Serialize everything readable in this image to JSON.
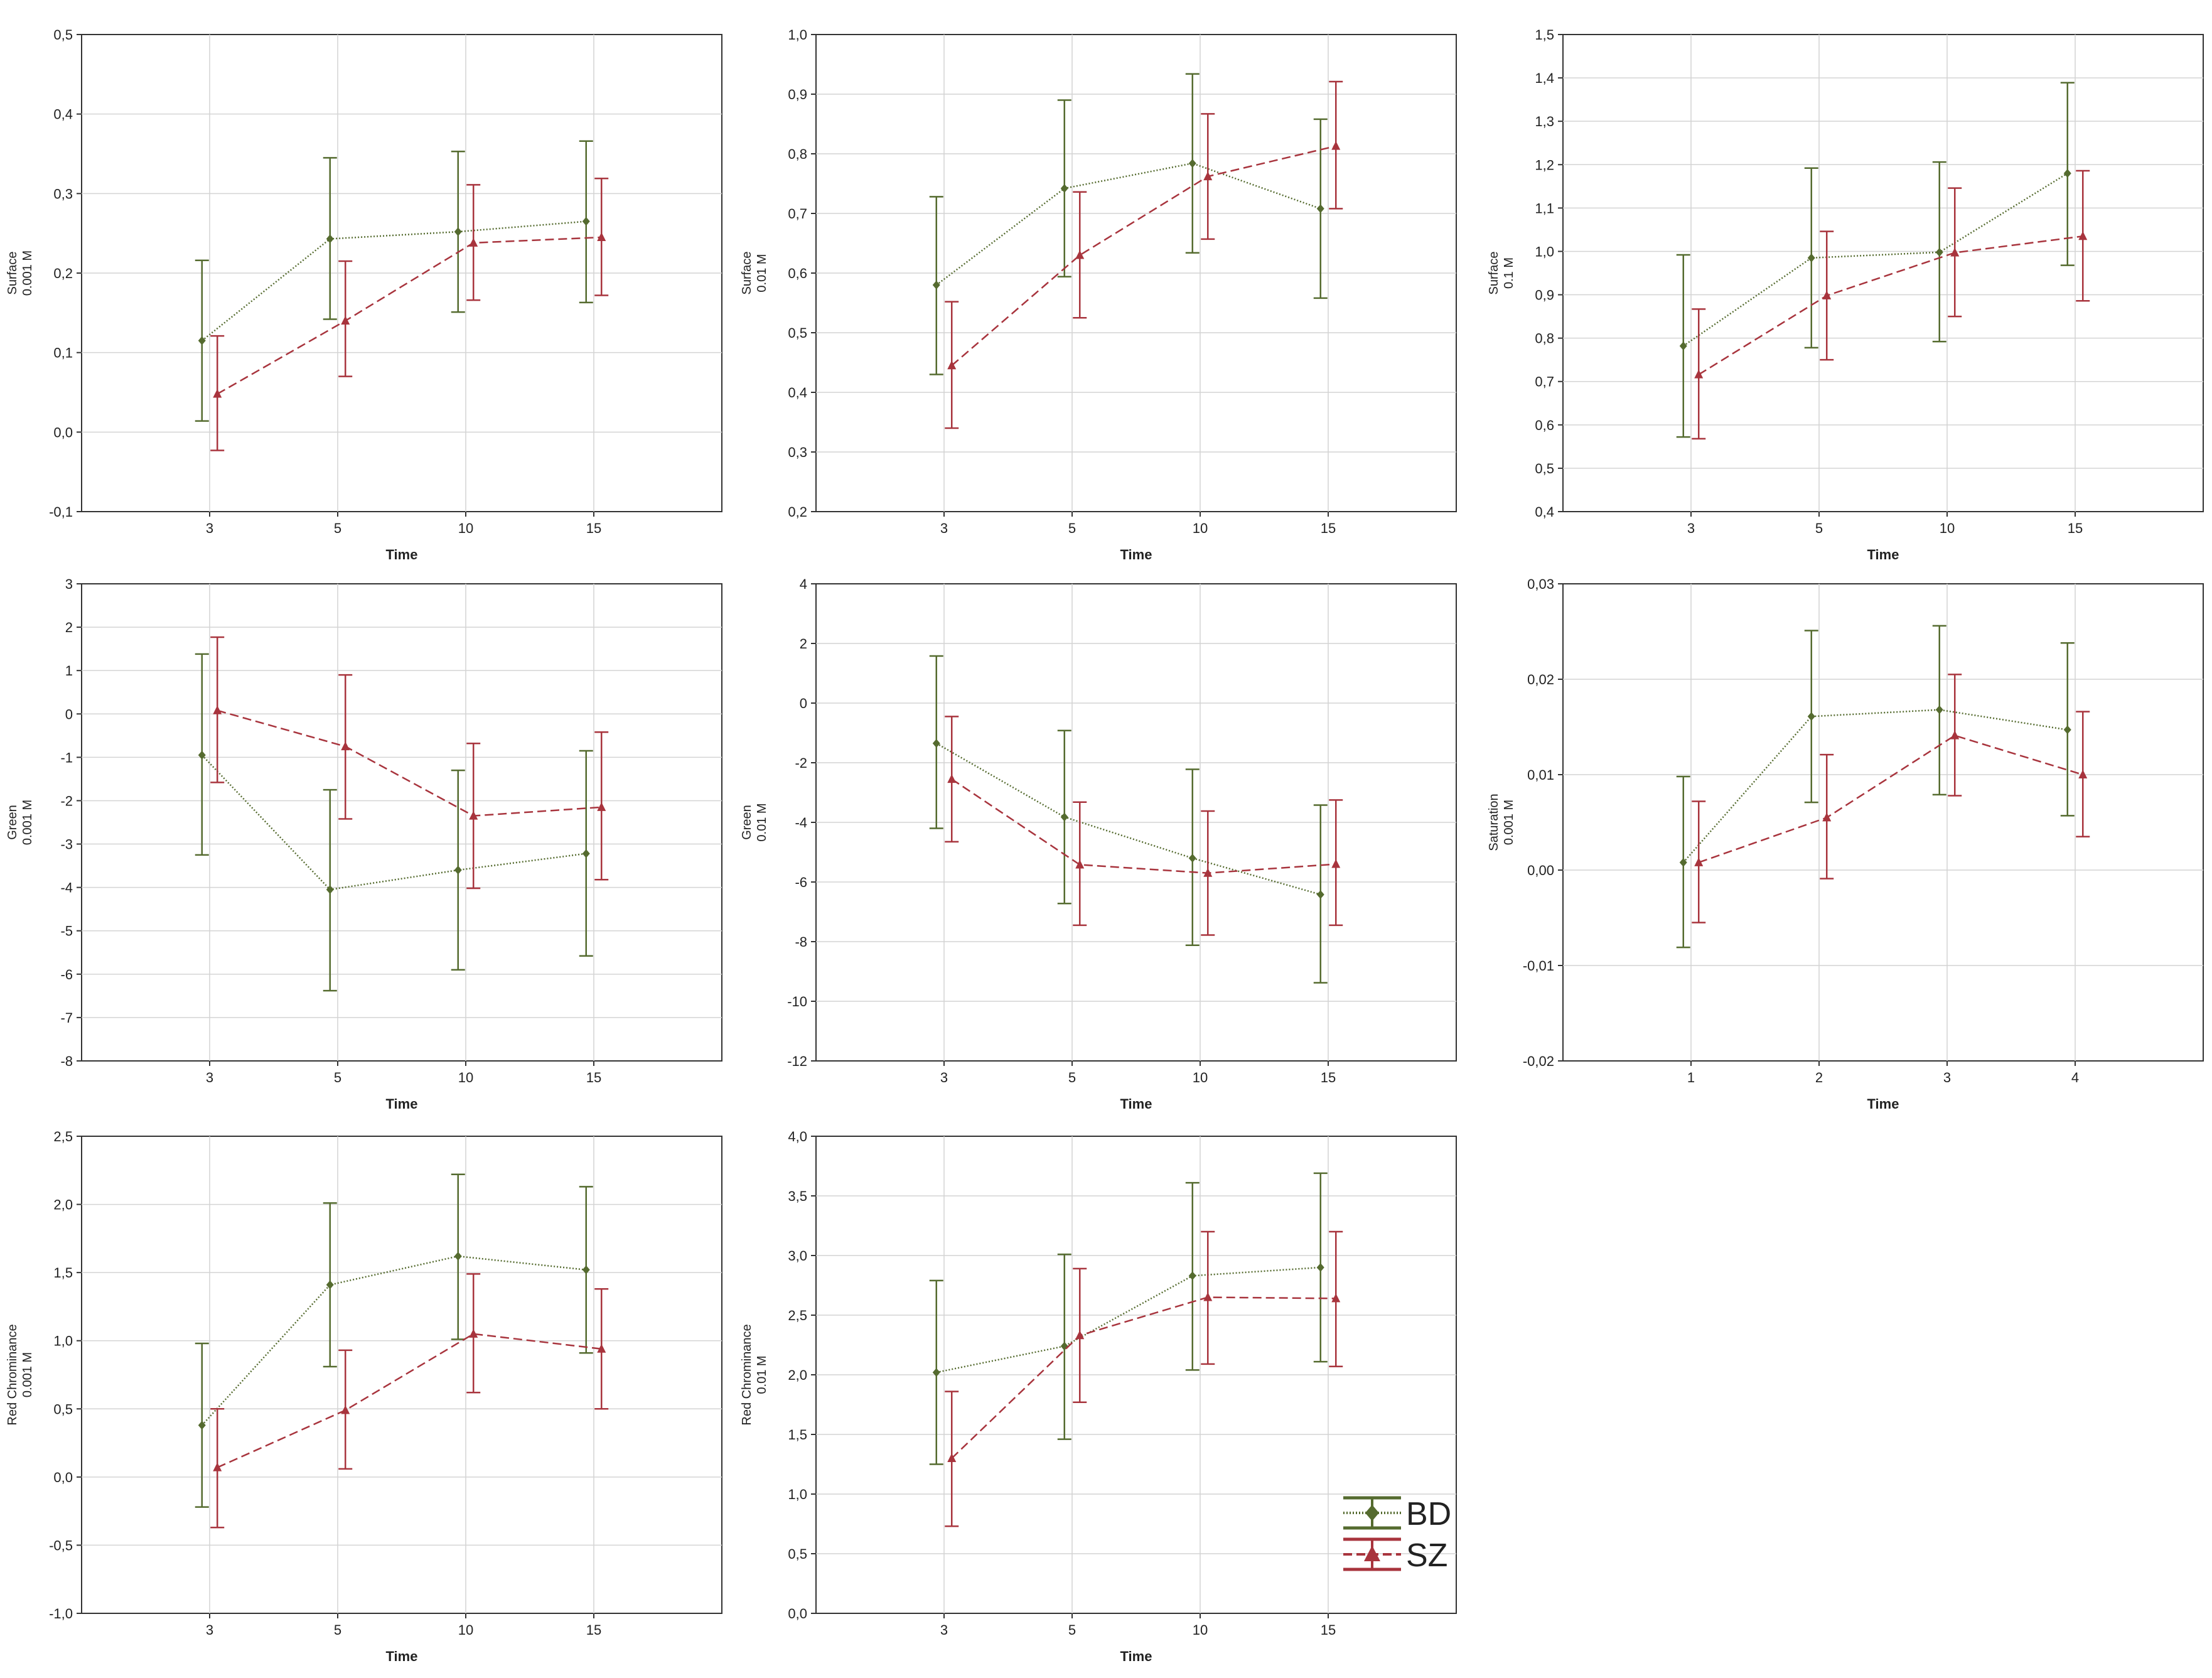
{
  "legend": {
    "entries": [
      {
        "label": "BD",
        "color": "#556b2f",
        "marker": "diamond",
        "dash": "2,3"
      },
      {
        "label": "SZ",
        "color": "#a8343d",
        "marker": "triangle",
        "dash": "14,7"
      }
    ]
  },
  "chart_data": [
    {
      "type": "line",
      "xlabel": "Time",
      "ylabel": [
        "Surface",
        "0.001 M"
      ],
      "categories": [
        "3",
        "5",
        "10",
        "15"
      ],
      "ylim": [
        -0.1,
        0.5
      ],
      "yticks": [
        "-0,1",
        "0,0",
        "0,1",
        "0,2",
        "0,3",
        "0,4",
        "0,5"
      ],
      "series": [
        {
          "name": "BD",
          "values": [
            0.115,
            0.243,
            0.252,
            0.265
          ],
          "lower": [
            0.014,
            0.142,
            0.151,
            0.163
          ],
          "upper": [
            0.216,
            0.345,
            0.353,
            0.366
          ]
        },
        {
          "name": "SZ",
          "values": [
            0.048,
            0.14,
            0.238,
            0.245
          ],
          "lower": [
            -0.023,
            0.07,
            0.166,
            0.172
          ],
          "upper": [
            0.121,
            0.215,
            0.311,
            0.319
          ]
        }
      ]
    },
    {
      "type": "line",
      "xlabel": "Time",
      "ylabel": [
        "Surface",
        "0.01 M"
      ],
      "categories": [
        "3",
        "5",
        "10",
        "15"
      ],
      "ylim": [
        0.2,
        1.0
      ],
      "yticks": [
        "0,2",
        "0,3",
        "0,4",
        "0,5",
        "0,6",
        "0,7",
        "0,8",
        "0,9",
        "1,0"
      ],
      "series": [
        {
          "name": "BD",
          "values": [
            0.58,
            0.742,
            0.784,
            0.708
          ],
          "lower": [
            0.43,
            0.594,
            0.634,
            0.558
          ],
          "upper": [
            0.728,
            0.89,
            0.934,
            0.858
          ]
        },
        {
          "name": "SZ",
          "values": [
            0.445,
            0.63,
            0.762,
            0.813
          ],
          "lower": [
            0.34,
            0.525,
            0.657,
            0.708
          ],
          "upper": [
            0.552,
            0.736,
            0.867,
            0.921
          ]
        }
      ]
    },
    {
      "type": "line",
      "xlabel": "Time",
      "ylabel": [
        "Surface",
        "0.1 M"
      ],
      "categories": [
        "3",
        "5",
        "10",
        "15"
      ],
      "ylim": [
        0.4,
        1.5
      ],
      "yticks": [
        "0,4",
        "0,5",
        "0,6",
        "0,7",
        "0,8",
        "0,9",
        "1,0",
        "1,1",
        "1,2",
        "1,3",
        "1,4",
        "1,5"
      ],
      "series": [
        {
          "name": "BD",
          "values": [
            0.782,
            0.985,
            0.998,
            1.18
          ],
          "lower": [
            0.572,
            0.778,
            0.792,
            0.968
          ],
          "upper": [
            0.992,
            1.192,
            1.206,
            1.389
          ]
        },
        {
          "name": "SZ",
          "values": [
            0.716,
            0.898,
            0.997,
            1.035
          ],
          "lower": [
            0.568,
            0.75,
            0.85,
            0.886
          ],
          "upper": [
            0.867,
            1.046,
            1.146,
            1.186
          ]
        }
      ]
    },
    {
      "type": "line",
      "xlabel": "Time",
      "ylabel": [
        "Green",
        "0.001 M"
      ],
      "categories": [
        "3",
        "5",
        "10",
        "15"
      ],
      "ylim": [
        -8,
        3
      ],
      "yticks": [
        "-8",
        "-7",
        "-6",
        "-5",
        "-4",
        "-3",
        "-2",
        "-1",
        "0",
        "1",
        "2",
        "3"
      ],
      "series": [
        {
          "name": "BD",
          "values": [
            -0.95,
            -4.05,
            -3.6,
            -3.22
          ],
          "lower": [
            -3.25,
            -6.38,
            -5.9,
            -5.58
          ],
          "upper": [
            1.38,
            -1.75,
            -1.3,
            -0.85
          ]
        },
        {
          "name": "SZ",
          "values": [
            0.08,
            -0.75,
            -2.35,
            -2.15
          ],
          "lower": [
            -1.58,
            -2.42,
            -4.02,
            -3.82
          ],
          "upper": [
            1.77,
            0.9,
            -0.68,
            -0.42
          ]
        }
      ]
    },
    {
      "type": "line",
      "xlabel": "Time",
      "ylabel": [
        "Green",
        "0.01 M"
      ],
      "categories": [
        "3",
        "5",
        "10",
        "15"
      ],
      "ylim": [
        -12,
        4
      ],
      "yticks": [
        "-12",
        "-10",
        "-8",
        "-6",
        "-4",
        "-2",
        "0",
        "2",
        "4"
      ],
      "series": [
        {
          "name": "BD",
          "values": [
            -1.35,
            -3.82,
            -5.2,
            -6.42
          ],
          "lower": [
            -4.2,
            -6.72,
            -8.12,
            -9.38
          ],
          "upper": [
            1.58,
            -0.92,
            -2.22,
            -3.42
          ]
        },
        {
          "name": "SZ",
          "values": [
            -2.55,
            -5.42,
            -5.7,
            -5.4
          ],
          "lower": [
            -4.65,
            -7.45,
            -7.78,
            -7.45
          ],
          "upper": [
            -0.45,
            -3.32,
            -3.62,
            -3.25
          ]
        }
      ]
    },
    {
      "type": "line",
      "xlabel": "Time",
      "ylabel": [
        "Saturation",
        "0.001 M"
      ],
      "categories": [
        "1",
        "2",
        "3",
        "4"
      ],
      "ylim": [
        -0.02,
        0.03
      ],
      "yticks": [
        "-0,02",
        "-0,01",
        "0,00",
        "0,01",
        "0,02",
        "0,03"
      ],
      "series": [
        {
          "name": "BD",
          "values": [
            0.0008,
            0.0161,
            0.0168,
            0.0147
          ],
          "lower": [
            -0.0081,
            0.0071,
            0.0079,
            0.0057
          ],
          "upper": [
            0.0098,
            0.0251,
            0.0256,
            0.0238
          ]
        },
        {
          "name": "SZ",
          "values": [
            0.0008,
            0.0055,
            0.0141,
            0.01
          ],
          "lower": [
            -0.0055,
            -0.0009,
            0.0078,
            0.0035
          ],
          "upper": [
            0.0072,
            0.0121,
            0.0205,
            0.0166
          ]
        }
      ]
    },
    {
      "type": "line",
      "xlabel": "Time",
      "ylabel": [
        "Red Chrominance",
        "0.001 M"
      ],
      "categories": [
        "3",
        "5",
        "10",
        "15"
      ],
      "ylim": [
        -1.0,
        2.5
      ],
      "yticks": [
        "-1,0",
        "-0,5",
        "0,0",
        "0,5",
        "1,0",
        "1,5",
        "2,0",
        "2,5"
      ],
      "series": [
        {
          "name": "BD",
          "values": [
            0.38,
            1.41,
            1.62,
            1.52
          ],
          "lower": [
            -0.22,
            0.81,
            1.01,
            0.91
          ],
          "upper": [
            0.98,
            2.01,
            2.22,
            2.13
          ]
        },
        {
          "name": "SZ",
          "values": [
            0.07,
            0.49,
            1.05,
            0.94
          ],
          "lower": [
            -0.37,
            0.06,
            0.62,
            0.5
          ],
          "upper": [
            0.5,
            0.93,
            1.49,
            1.38
          ]
        }
      ]
    },
    {
      "type": "line",
      "xlabel": "Time",
      "ylabel": [
        "Red Chrominance",
        "0.01 M"
      ],
      "categories": [
        "3",
        "5",
        "10",
        "15"
      ],
      "ylim": [
        0.0,
        4.0
      ],
      "yticks": [
        "0,0",
        "0,5",
        "1,0",
        "1,5",
        "2,0",
        "2,5",
        "3,0",
        "3,5",
        "4,0"
      ],
      "series": [
        {
          "name": "BD",
          "values": [
            2.02,
            2.24,
            2.83,
            2.9
          ],
          "lower": [
            1.25,
            1.46,
            2.04,
            2.11
          ],
          "upper": [
            2.79,
            3.01,
            3.61,
            3.69
          ]
        },
        {
          "name": "SZ",
          "values": [
            1.3,
            2.33,
            2.65,
            2.64
          ],
          "lower": [
            0.73,
            1.77,
            2.09,
            2.07
          ],
          "upper": [
            1.86,
            2.89,
            3.2,
            3.2
          ]
        }
      ]
    }
  ]
}
